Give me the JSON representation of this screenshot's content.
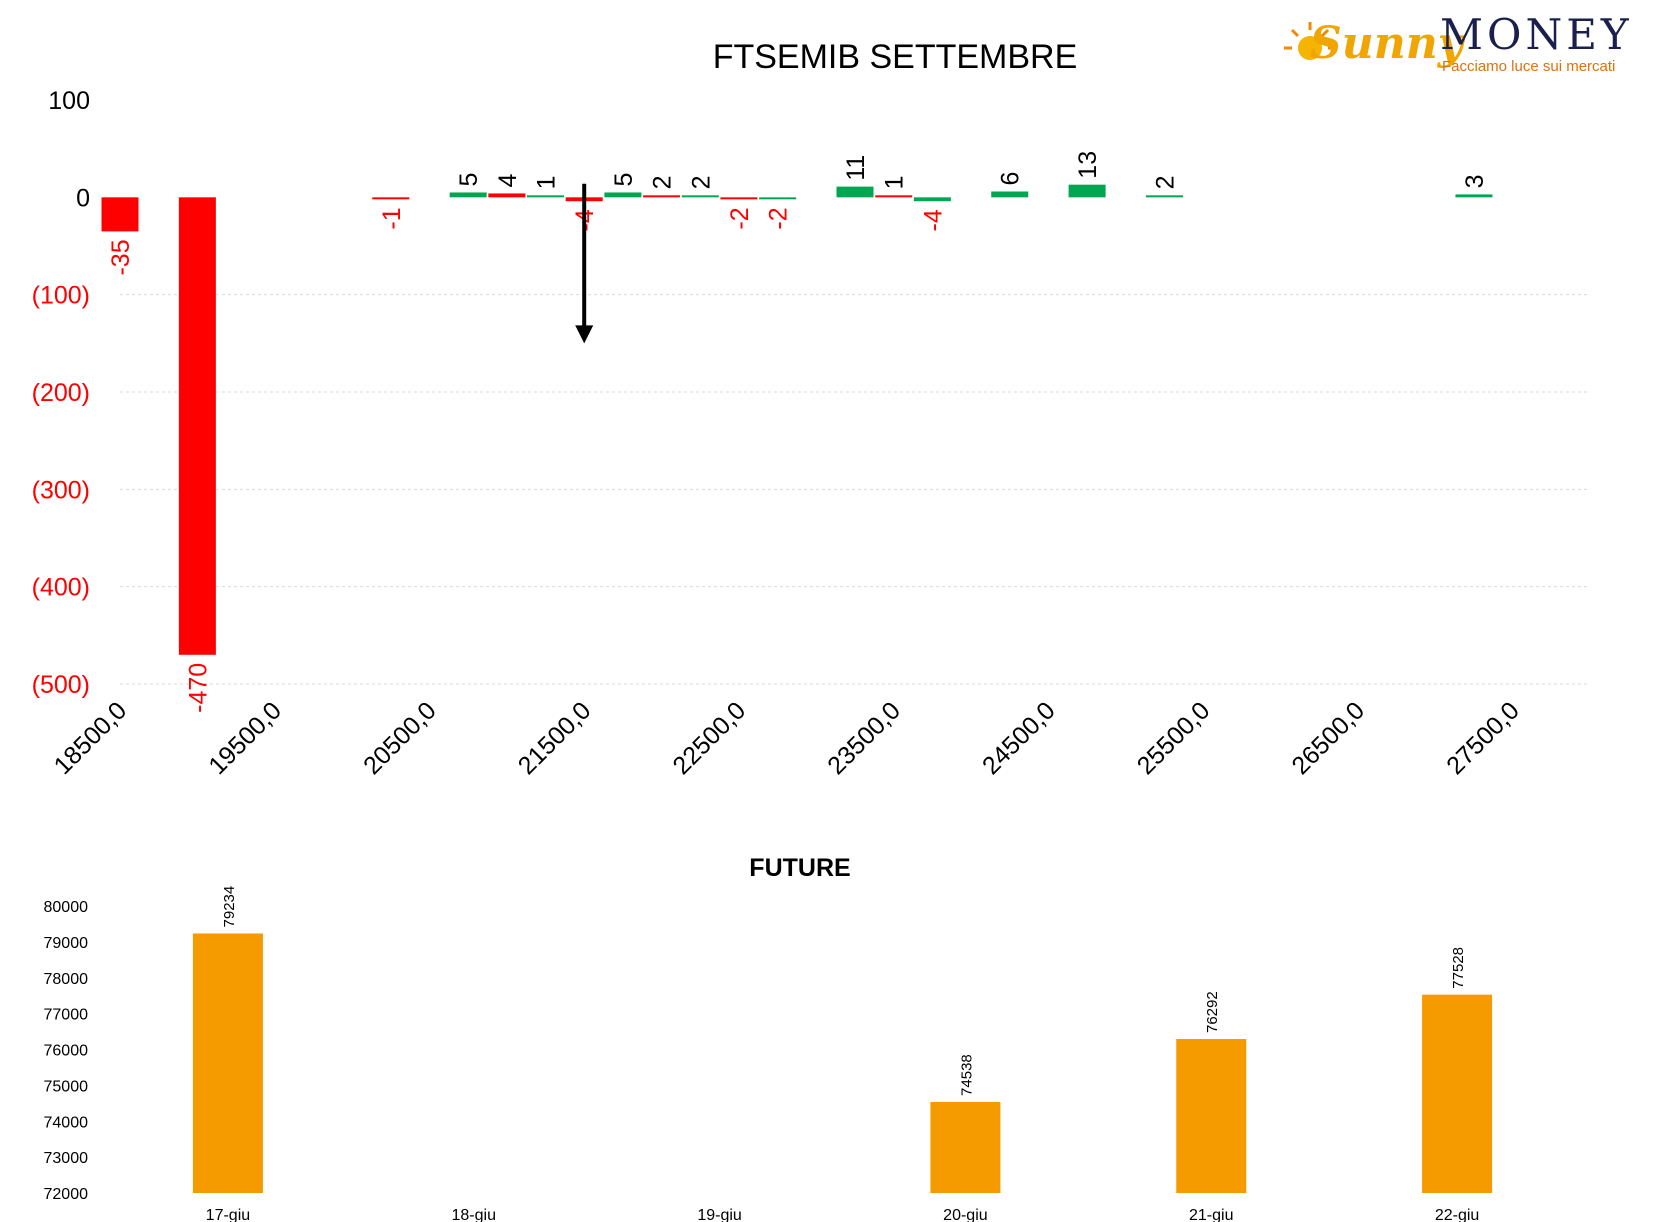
{
  "logo": {
    "sunny": "Sunny",
    "money": "MONEY",
    "tagline": "Facciamo luce sui mercati"
  },
  "colors": {
    "negative": "#ff0000",
    "positive": "#00a651",
    "future": "#f59b00",
    "arrow": "#000000"
  },
  "chart_data": [
    {
      "type": "bar",
      "title": "FTSEMIB SETTEMBRE",
      "xlabel": "",
      "ylabel": "",
      "xlim": [
        18500,
        28000
      ],
      "ylim": [
        -500,
        100
      ],
      "y_ticks": [
        {
          "value": 100,
          "label": "100",
          "negative": false
        },
        {
          "value": 0,
          "label": "0",
          "negative": false
        },
        {
          "value": -100,
          "label": "(100)",
          "negative": true
        },
        {
          "value": -200,
          "label": "(200)",
          "negative": true
        },
        {
          "value": -300,
          "label": "(300)",
          "negative": true
        },
        {
          "value": -400,
          "label": "(400)",
          "negative": true
        },
        {
          "value": -500,
          "label": "(500)",
          "negative": true
        }
      ],
      "x_ticks": [
        {
          "value": 18500,
          "label": "18500,0"
        },
        {
          "value": 19500,
          "label": "19500,0"
        },
        {
          "value": 20500,
          "label": "20500,0"
        },
        {
          "value": 21500,
          "label": "21500,0"
        },
        {
          "value": 22500,
          "label": "22500,0"
        },
        {
          "value": 23500,
          "label": "23500,0"
        },
        {
          "value": 24500,
          "label": "24500,0"
        },
        {
          "value": 25500,
          "label": "25500,0"
        },
        {
          "value": 26500,
          "label": "26500,0"
        },
        {
          "value": 27500,
          "label": "27500,0"
        }
      ],
      "grid": true,
      "points": [
        {
          "strike": 18500,
          "value": -35,
          "label": "-35"
        },
        {
          "strike": 19000,
          "value": -470,
          "label": "-470"
        },
        {
          "strike": 20250,
          "value": -1,
          "label": "-1"
        },
        {
          "strike": 20750,
          "value": 5,
          "label": "5"
        },
        {
          "strike": 21000,
          "value": 4,
          "label": "4",
          "color": "negative"
        },
        {
          "strike": 21250,
          "value": 1,
          "label": "1"
        },
        {
          "strike": 21500,
          "value": -4,
          "label": "-4"
        },
        {
          "strike": 21750,
          "value": 5,
          "label": "5"
        },
        {
          "strike": 22000,
          "value": 2,
          "label": "2",
          "color": "negative"
        },
        {
          "strike": 22250,
          "value": 2,
          "label": "2"
        },
        {
          "strike": 22500,
          "value": -2,
          "label": "-2"
        },
        {
          "strike": 22750,
          "value": -2,
          "label": "-2",
          "color": "positive"
        },
        {
          "strike": 23250,
          "value": 11,
          "label": "11"
        },
        {
          "strike": 23500,
          "value": 1,
          "label": "1",
          "color": "negative"
        },
        {
          "strike": 23750,
          "value": -4,
          "label": "-4",
          "color": "positive"
        },
        {
          "strike": 24250,
          "value": 6,
          "label": "6"
        },
        {
          "strike": 24750,
          "value": 13,
          "label": "13"
        },
        {
          "strike": 25250,
          "value": 2,
          "label": "2"
        },
        {
          "strike": 27250,
          "value": 3,
          "label": "3"
        }
      ],
      "annotation": {
        "type": "arrow",
        "direction": "down",
        "strike": 21500,
        "from": 14,
        "to": -150
      }
    },
    {
      "type": "bar",
      "title": "FUTURE",
      "xlabel": "",
      "ylabel": "",
      "ylim": [
        72000,
        80000
      ],
      "y_ticks": [
        80000,
        79000,
        78000,
        77000,
        76000,
        75000,
        74000,
        73000,
        72000
      ],
      "grid": false,
      "categories": [
        "17-giu",
        "18-giu",
        "19-giu",
        "20-giu",
        "21-giu",
        "22-giu"
      ],
      "values": [
        79234,
        null,
        null,
        74538,
        76292,
        77528
      ],
      "value_labels": [
        "79234",
        "",
        "",
        "74538",
        "76292",
        "77528"
      ]
    }
  ]
}
